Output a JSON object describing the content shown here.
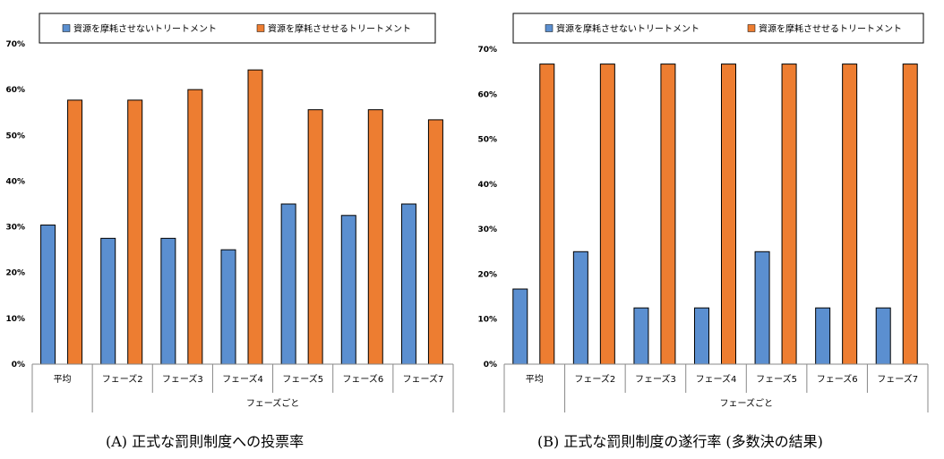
{
  "chart_data": [
    {
      "type": "bar",
      "caption": "(A) 正式な罰則制度への投票率",
      "categories": [
        "平均",
        "フェーズ2",
        "フェーズ3",
        "フェーズ4",
        "フェーズ5",
        "フェーズ6",
        "フェーズ7"
      ],
      "xlabel": "フェーズごと",
      "ylim": [
        0,
        70
      ],
      "yticks": [
        "0%",
        "10%",
        "20%",
        "30%",
        "40%",
        "50%",
        "60%",
        "70%"
      ],
      "legend_position": "top",
      "series": [
        {
          "name": "資源を摩耗させないトリートメント",
          "color": "#5b8fd0",
          "values": [
            30.4,
            27.5,
            27.5,
            25.0,
            35.0,
            32.5,
            35.0
          ]
        },
        {
          "name": "資源を摩耗させせるトリートメント",
          "color": "#ed7d31",
          "values": [
            57.7,
            57.7,
            60.0,
            64.3,
            55.6,
            55.6,
            53.4
          ]
        }
      ]
    },
    {
      "type": "bar",
      "caption": "(B) 正式な罰則制度の遂行率 (多数決の結果)",
      "categories": [
        "平均",
        "フェーズ2",
        "フェーズ3",
        "フェーズ4",
        "フェーズ5",
        "フェーズ6",
        "フェーズ7"
      ],
      "xlabel": "フェーズごと",
      "ylim": [
        0,
        70
      ],
      "yticks": [
        "0%",
        "10%",
        "20%",
        "30%",
        "40%",
        "50%",
        "60%",
        "70%"
      ],
      "legend_position": "top",
      "series": [
        {
          "name": "資源を摩耗させないトリートメント",
          "color": "#5b8fd0",
          "values": [
            16.7,
            25.0,
            12.5,
            12.5,
            25.0,
            12.5,
            12.5
          ]
        },
        {
          "name": "資源を摩耗させせるトリートメント",
          "color": "#ed7d31",
          "values": [
            66.7,
            66.7,
            66.7,
            66.7,
            66.7,
            66.7,
            66.7
          ]
        }
      ]
    }
  ]
}
